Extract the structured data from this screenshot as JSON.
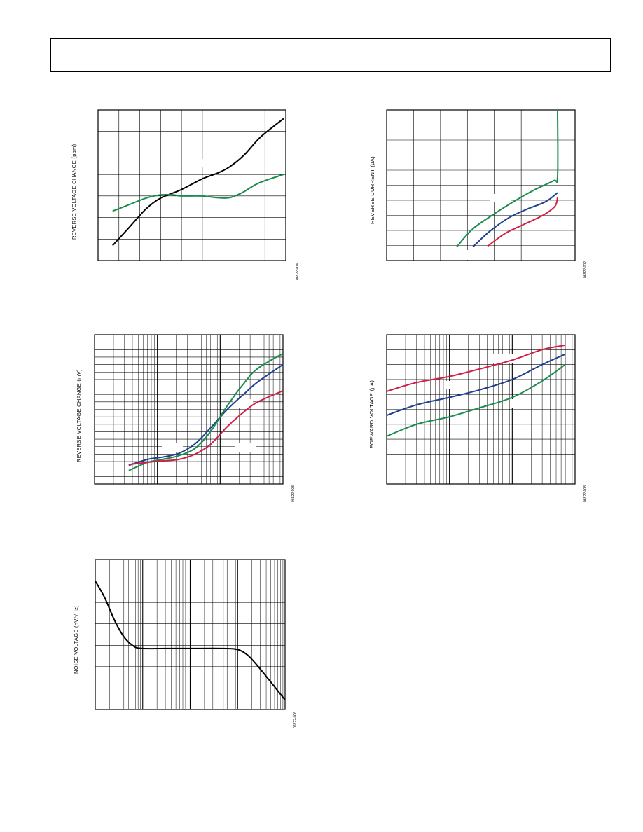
{
  "colors": {
    "black": "#000000",
    "green": "#1a8c4e",
    "blue": "#1f3f8f",
    "red": "#d11f45"
  },
  "chart_data": [
    {
      "id": "c1",
      "type": "line",
      "ylabel": "REVERSE VOLTAGE CHANGE (ppm)",
      "figure_id": "06822-004",
      "x_scale": "linear",
      "xlim": [
        0,
        9
      ],
      "ylim": [
        0,
        7
      ],
      "grid": {
        "x_divisions": 9,
        "y_divisions": 7
      },
      "series": [
        {
          "color": "black",
          "x": [
            0.7,
            1.5,
            2.3,
            3.0,
            4.0,
            5.0,
            5.7,
            6.3,
            7.0,
            7.8,
            8.9
          ],
          "y": [
            0.7,
            1.55,
            2.4,
            2.9,
            3.3,
            3.8,
            4.05,
            4.35,
            4.9,
            5.75,
            6.6
          ]
        },
        {
          "color": "green",
          "x": [
            0.7,
            1.5,
            2.3,
            3.0,
            3.6,
            4.0,
            5.0,
            5.7,
            6.3,
            6.9,
            7.7,
            8.9
          ],
          "y": [
            2.3,
            2.6,
            2.9,
            3.05,
            3.05,
            3.0,
            3.0,
            2.92,
            2.92,
            3.15,
            3.6,
            4.0
          ]
        }
      ]
    },
    {
      "id": "c2",
      "type": "line",
      "ylabel": "REVERSE CURRENT (µA)",
      "figure_id": "06822-002",
      "x_scale": "linear",
      "xlim": [
        0,
        7
      ],
      "ylim": [
        0,
        10
      ],
      "grid": {
        "x_divisions": 7,
        "y_divisions": 10
      },
      "series": [
        {
          "color": "green",
          "x": [
            2.6,
            3.2,
            4.0,
            4.8,
            5.5,
            6.2,
            6.35,
            6.35
          ],
          "y": [
            0.9,
            2.1,
            3.1,
            4.0,
            4.7,
            5.3,
            5.6,
            10.0
          ]
        },
        {
          "color": "blue",
          "x": [
            3.2,
            3.8,
            4.5,
            5.2,
            5.9,
            6.35
          ],
          "y": [
            0.9,
            1.9,
            2.8,
            3.4,
            3.9,
            4.5
          ]
        },
        {
          "color": "red",
          "x": [
            3.75,
            4.4,
            5.1,
            5.8,
            6.25,
            6.35
          ],
          "y": [
            0.95,
            1.8,
            2.4,
            3.0,
            3.6,
            4.2
          ]
        }
      ]
    },
    {
      "id": "c3",
      "type": "line",
      "ylabel": "REVERSE VOLTAGE CHANGE (mV)",
      "figure_id": "06822-003",
      "x_scale": "log",
      "xlim": [
        1,
        1000
      ],
      "ylim": [
        0,
        20
      ],
      "grid": {
        "y_divisions": 20
      },
      "series": [
        {
          "color": "blue",
          "x": [
            3.5,
            7,
            12,
            22,
            40,
            70,
            130,
            250,
            400,
            1000
          ],
          "y": [
            2.5,
            3.3,
            3.6,
            4.1,
            5.4,
            7.5,
            10.0,
            12.2,
            13.7,
            16.0
          ]
        },
        {
          "color": "green",
          "x": [
            3.5,
            7,
            12,
            22,
            40,
            70,
            130,
            250,
            400,
            1000
          ],
          "y": [
            1.8,
            2.9,
            3.3,
            3.8,
            4.8,
            7.0,
            10.5,
            13.7,
            15.5,
            17.5
          ]
        },
        {
          "color": "red",
          "x": [
            3.5,
            7,
            12,
            22,
            40,
            70,
            130,
            250,
            400,
            1000
          ],
          "y": [
            2.6,
            2.9,
            3.1,
            3.3,
            4.0,
            5.3,
            7.7,
            9.8,
            11.0,
            12.5
          ]
        }
      ]
    },
    {
      "id": "c4",
      "type": "line",
      "ylabel": "FORWARD VOLTAGE (µA)",
      "figure_id": "06822-008",
      "x_scale": "log",
      "xlim": [
        1,
        1000
      ],
      "ylim": [
        0,
        10
      ],
      "grid": {
        "y_divisions": 10
      },
      "series": [
        {
          "color": "red",
          "x": [
            1,
            3,
            10,
            30,
            100,
            300,
            700
          ],
          "y": [
            6.2,
            6.8,
            7.2,
            7.7,
            8.3,
            9.0,
            9.3
          ]
        },
        {
          "color": "blue",
          "x": [
            1,
            3,
            10,
            30,
            100,
            300,
            700
          ],
          "y": [
            4.6,
            5.3,
            5.8,
            6.3,
            7.0,
            8.0,
            8.7
          ]
        },
        {
          "color": "green",
          "x": [
            1,
            3,
            10,
            30,
            100,
            300,
            700
          ],
          "y": [
            3.2,
            4.0,
            4.5,
            5.1,
            5.8,
            6.9,
            8.0
          ]
        }
      ]
    },
    {
      "id": "c5",
      "type": "line",
      "ylabel": "NOISE VOLTAGE (nV/√Hz)",
      "figure_id": "06822-006",
      "x_scale": "log",
      "xlim": [
        1,
        10000
      ],
      "ylim": [
        0,
        7
      ],
      "grid": {
        "y_divisions": 7
      },
      "series": [
        {
          "color": "black",
          "x": [
            1,
            1.6,
            2.5,
            4,
            6.5,
            10,
            30,
            100,
            500,
            1000,
            1600,
            2500,
            4000,
            10000
          ],
          "y": [
            6.0,
            5.2,
            4.2,
            3.4,
            2.95,
            2.85,
            2.85,
            2.85,
            2.85,
            2.8,
            2.55,
            2.1,
            1.55,
            0.45
          ]
        }
      ]
    }
  ]
}
